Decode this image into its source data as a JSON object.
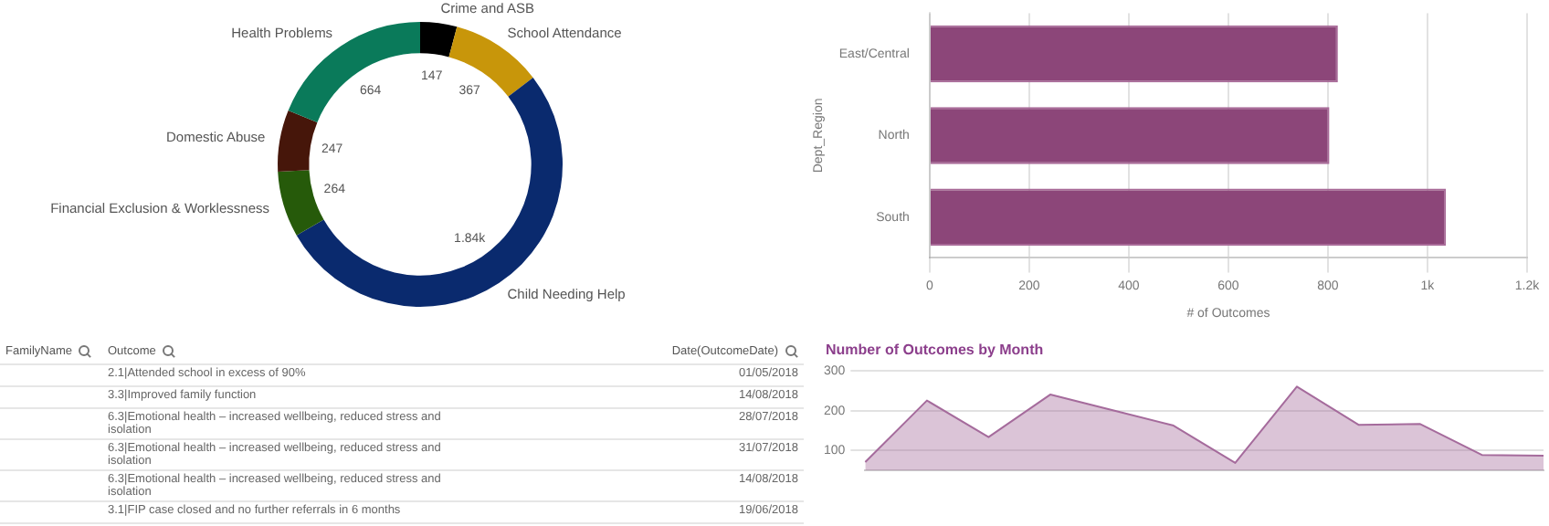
{
  "chart_data": [
    {
      "type": "donut",
      "categories": [
        "Crime and ASB",
        "School Attendance",
        "Child Needing Help",
        "Financial Exclusion & Worklessness",
        "Domestic Abuse",
        "Health Problems"
      ],
      "values": [
        147,
        367,
        1840,
        264,
        247,
        664
      ],
      "value_labels": [
        "147",
        "367",
        "1.84k",
        "264",
        "247",
        "664"
      ],
      "colors": [
        "#000000",
        "#c8960a",
        "#0a2a6e",
        "#265a0a",
        "#46160a",
        "#0a7a5a"
      ]
    },
    {
      "type": "bar",
      "orientation": "horizontal",
      "categories": [
        "East/Central",
        "North",
        "South"
      ],
      "values": [
        820,
        803,
        1037
      ],
      "color": "#8c4679",
      "xlim": [
        0,
        1200
      ],
      "xticks": [
        0,
        200,
        400,
        600,
        800,
        {
          "value": 1000,
          "label": "1k"
        },
        {
          "value": 1200,
          "label": "1.2k"
        }
      ],
      "xlabel": "# of Outcomes",
      "ylabel": "Dept_Region",
      "grid": "x"
    },
    {
      "type": "other",
      "categories": [
        "FamilyName",
        "Outcome",
        "Date(OutcomeDate)"
      ],
      "cell_labels": [
        [
          null,
          "2.1|Attended school in excess of 90%",
          "01/05/2018"
        ],
        [
          null,
          "3.3|Improved family function",
          "14/08/2018"
        ],
        [
          null,
          "6.3|Emotional health – increased wellbeing, reduced stress and isolation",
          "28/07/2018"
        ],
        [
          null,
          "6.3|Emotional health – increased wellbeing, reduced stress and isolation",
          "31/07/2018"
        ],
        [
          null,
          "6.3|Emotional health – increased wellbeing, reduced stress and isolation",
          "14/08/2018"
        ],
        [
          null,
          "3.1|FIP case closed and no further referrals in 6 months",
          "19/06/2018"
        ]
      ]
    },
    {
      "type": "area",
      "title": "Number of Outcomes by Month",
      "categories": [
        null,
        null,
        null,
        null,
        null,
        null,
        null,
        null,
        null,
        null,
        null,
        null
      ],
      "values": [
        71,
        226,
        134,
        241,
        202,
        163,
        69,
        261,
        165,
        167,
        89,
        87
      ],
      "color": "#a56b9c",
      "ylim": [
        50,
        300
      ],
      "yticks": [
        100,
        200,
        300
      ],
      "grid": "y"
    }
  ]
}
